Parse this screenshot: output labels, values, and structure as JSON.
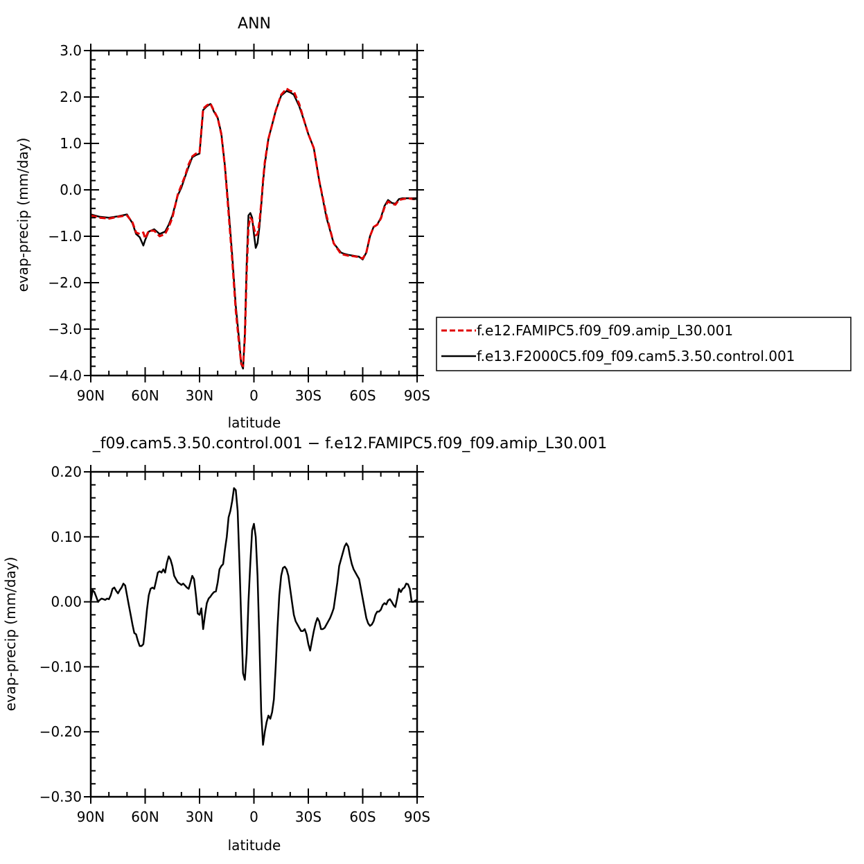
{
  "chart_data": [
    {
      "type": "line",
      "title": "ANN",
      "xlabel": "latitude",
      "ylabel": "evap-precip (mm/day)",
      "xlim": [
        90,
        -90
      ],
      "ylim": [
        -4.0,
        3.0
      ],
      "x_ticks": [
        90,
        60,
        30,
        0,
        -30,
        -60,
        -90
      ],
      "x_tick_labels": [
        "90N",
        "60N",
        "30N",
        "0",
        "30S",
        "60S",
        "90S"
      ],
      "y_ticks": [
        3.0,
        2.0,
        1.0,
        0.0,
        -1.0,
        -2.0,
        -3.0,
        -4.0
      ],
      "y_tick_labels": [
        "3.0",
        "2.0",
        "1.0",
        "0.0",
        "−1.0",
        "−2.0",
        "−3.0",
        "−4.0"
      ],
      "legend_position": "right",
      "series": [
        {
          "name": "f.e12.FAMIPC5.f09_f09.amip_L30.001",
          "color": "#e00000",
          "style": "dashed",
          "x": [
            90,
            85,
            80,
            75,
            70,
            67,
            65,
            63,
            61,
            60,
            58,
            55,
            52,
            49,
            47,
            45,
            42,
            40,
            38,
            36,
            34,
            32,
            30,
            28,
            26,
            24,
            22,
            20,
            18,
            16,
            14,
            12,
            10,
            8,
            7,
            6,
            5,
            4,
            3,
            2,
            1,
            0,
            -1,
            -2,
            -3,
            -4,
            -5,
            -6,
            -8,
            -10,
            -12,
            -15,
            -18,
            -20,
            -22,
            -25,
            -28,
            -30,
            -33,
            -36,
            -40,
            -44,
            -48,
            -50,
            -52,
            -55,
            -58,
            -60,
            -62,
            -64,
            -66,
            -68,
            -70,
            -72,
            -74,
            -76,
            -78,
            -80,
            -82,
            -85,
            -88,
            -90
          ],
          "y": [
            -0.55,
            -0.6,
            -0.62,
            -0.58,
            -0.55,
            -0.7,
            -0.92,
            -0.95,
            -0.92,
            -1.05,
            -0.88,
            -0.88,
            -1.0,
            -0.95,
            -0.8,
            -0.6,
            -0.1,
            0.1,
            0.3,
            0.55,
            0.72,
            0.78,
            0.8,
            1.75,
            1.82,
            1.86,
            1.7,
            1.55,
            1.2,
            0.5,
            -0.5,
            -1.5,
            -2.6,
            -3.4,
            -3.75,
            -3.8,
            -3.2,
            -1.8,
            -0.8,
            -0.6,
            -0.65,
            -0.82,
            -0.98,
            -0.95,
            -0.7,
            -0.3,
            0.2,
            0.6,
            1.1,
            1.4,
            1.7,
            2.05,
            2.18,
            2.13,
            2.12,
            1.85,
            1.45,
            1.2,
            0.9,
            0.2,
            -0.55,
            -1.15,
            -1.38,
            -1.4,
            -1.42,
            -1.43,
            -1.45,
            -1.48,
            -1.35,
            -1.0,
            -0.8,
            -0.75,
            -0.62,
            -0.38,
            -0.25,
            -0.3,
            -0.32,
            -0.22,
            -0.2,
            -0.18,
            -0.2,
            -0.2
          ]
        },
        {
          "name": "f.e13.F2000C5.f09_f09.cam5.3.50.control.001",
          "color": "#000000",
          "style": "solid",
          "x": [
            90,
            85,
            80,
            75,
            70,
            67,
            65,
            63,
            61,
            60,
            58,
            55,
            52,
            49,
            47,
            45,
            42,
            40,
            38,
            36,
            34,
            32,
            30,
            28,
            26,
            24,
            22,
            20,
            18,
            16,
            14,
            12,
            10,
            8,
            7,
            6,
            5,
            4,
            3,
            2,
            1,
            0,
            -1,
            -2,
            -3,
            -4,
            -5,
            -6,
            -8,
            -10,
            -12,
            -15,
            -18,
            -20,
            -22,
            -25,
            -28,
            -30,
            -33,
            -36,
            -40,
            -44,
            -48,
            -50,
            -52,
            -55,
            -58,
            -60,
            -62,
            -64,
            -66,
            -68,
            -70,
            -72,
            -74,
            -76,
            -78,
            -80,
            -82,
            -85,
            -88,
            -90
          ],
          "y": [
            -0.53,
            -0.58,
            -0.6,
            -0.57,
            -0.53,
            -0.72,
            -0.95,
            -1.02,
            -1.2,
            -1.08,
            -0.9,
            -0.85,
            -0.95,
            -0.9,
            -0.75,
            -0.55,
            -0.12,
            0.05,
            0.28,
            0.5,
            0.7,
            0.75,
            0.78,
            1.72,
            1.8,
            1.85,
            1.68,
            1.55,
            1.22,
            0.52,
            -0.4,
            -1.4,
            -2.5,
            -3.3,
            -3.75,
            -3.85,
            -3.1,
            -1.6,
            -0.55,
            -0.5,
            -0.6,
            -0.95,
            -1.25,
            -1.15,
            -0.8,
            -0.35,
            0.15,
            0.55,
            1.1,
            1.4,
            1.7,
            2.03,
            2.13,
            2.1,
            2.05,
            1.8,
            1.45,
            1.2,
            0.9,
            0.2,
            -0.6,
            -1.15,
            -1.35,
            -1.38,
            -1.4,
            -1.42,
            -1.44,
            -1.5,
            -1.35,
            -1.0,
            -0.8,
            -0.75,
            -0.6,
            -0.35,
            -0.22,
            -0.28,
            -0.3,
            -0.2,
            -0.18,
            -0.18,
            -0.18,
            -0.18
          ]
        }
      ]
    },
    {
      "type": "line",
      "title": "_f09.cam5.3.50.control.001 − f.e12.FAMIPC5.f09_f09.amip_L30.001",
      "xlabel": "latitude",
      "ylabel": "evap-precip (mm/day)",
      "xlim": [
        90,
        -90
      ],
      "ylim": [
        -0.3,
        0.2
      ],
      "x_ticks": [
        90,
        60,
        30,
        0,
        -30,
        -60,
        -90
      ],
      "x_tick_labels": [
        "90N",
        "60N",
        "30N",
        "0",
        "30S",
        "60S",
        "90S"
      ],
      "y_ticks": [
        0.2,
        0.1,
        0.0,
        -0.1,
        -0.2,
        -0.3
      ],
      "y_tick_labels": [
        "0.20",
        "0.10",
        "0.00",
        "−0.10",
        "−0.20",
        "−0.30"
      ],
      "series": [
        {
          "color": "#000000",
          "style": "solid",
          "x": [
            90,
            89,
            88,
            87,
            86,
            85,
            84,
            83,
            82,
            81,
            80,
            79,
            78,
            77,
            76,
            75,
            74,
            73,
            72,
            71,
            70,
            69,
            68,
            67,
            66,
            65,
            64,
            63,
            62,
            61,
            60,
            59,
            58,
            57,
            56,
            55,
            54,
            53,
            52,
            51,
            50,
            49,
            48,
            47,
            46,
            45,
            44,
            43,
            42,
            41,
            40,
            39,
            38,
            37,
            36,
            35,
            34,
            33,
            32,
            31,
            30,
            29,
            28,
            27,
            26,
            25,
            24,
            23,
            22,
            21,
            20,
            19,
            18,
            17,
            16,
            15,
            14,
            13,
            12,
            11,
            10,
            9,
            8,
            7,
            6,
            5,
            4,
            3,
            2,
            1,
            0,
            -1,
            -2,
            -3,
            -4,
            -5,
            -6,
            -7,
            -8,
            -9,
            -10,
            -11,
            -12,
            -13,
            -14,
            -15,
            -16,
            -17,
            -18,
            -19,
            -20,
            -21,
            -22,
            -23,
            -24,
            -25,
            -26,
            -27,
            -28,
            -29,
            -30,
            -31,
            -32,
            -33,
            -34,
            -35,
            -36,
            -37,
            -38,
            -39,
            -40,
            -41,
            -42,
            -43,
            -44,
            -45,
            -46,
            -47,
            -48,
            -49,
            -50,
            -51,
            -52,
            -53,
            -54,
            -55,
            -56,
            -57,
            -58,
            -59,
            -60,
            -61,
            -62,
            -63,
            -64,
            -65,
            -66,
            -67,
            -68,
            -69,
            -70,
            -71,
            -72,
            -73,
            -74,
            -75,
            -76,
            -77,
            -78,
            -79,
            -80,
            -81,
            -82,
            -83,
            -84,
            -85,
            -86,
            -87,
            -88,
            -89,
            -90
          ],
          "y": [
            0.0,
            0.018,
            0.015,
            0.008,
            0.0,
            0.003,
            0.005,
            0.004,
            0.003,
            0.005,
            0.004,
            0.01,
            0.02,
            0.022,
            0.017,
            0.013,
            0.018,
            0.022,
            0.028,
            0.025,
            0.01,
            -0.005,
            -0.02,
            -0.035,
            -0.048,
            -0.05,
            -0.06,
            -0.068,
            -0.068,
            -0.065,
            -0.04,
            -0.012,
            0.01,
            0.02,
            0.022,
            0.02,
            0.032,
            0.045,
            0.047,
            0.045,
            0.05,
            0.045,
            0.06,
            0.07,
            0.065,
            0.055,
            0.04,
            0.035,
            0.03,
            0.028,
            0.026,
            0.028,
            0.025,
            0.022,
            0.02,
            0.03,
            0.04,
            0.035,
            0.01,
            -0.018,
            -0.02,
            -0.01,
            -0.042,
            -0.02,
            -0.002,
            0.005,
            0.008,
            0.012,
            0.015,
            0.016,
            0.03,
            0.05,
            0.055,
            0.058,
            0.08,
            0.1,
            0.13,
            0.14,
            0.155,
            0.175,
            0.172,
            0.14,
            0.06,
            -0.03,
            -0.11,
            -0.12,
            -0.08,
            0.0,
            0.06,
            0.11,
            0.12,
            0.1,
            0.04,
            -0.06,
            -0.17,
            -0.22,
            -0.2,
            -0.185,
            -0.175,
            -0.18,
            -0.17,
            -0.15,
            -0.1,
            -0.04,
            0.01,
            0.04,
            0.052,
            0.054,
            0.05,
            0.04,
            0.02,
            0.0,
            -0.02,
            -0.03,
            -0.035,
            -0.04,
            -0.045,
            -0.045,
            -0.042,
            -0.05,
            -0.065,
            -0.075,
            -0.06,
            -0.045,
            -0.033,
            -0.025,
            -0.03,
            -0.042,
            -0.042,
            -0.04,
            -0.035,
            -0.03,
            -0.025,
            -0.018,
            -0.01,
            0.01,
            0.03,
            0.055,
            0.065,
            0.075,
            0.085,
            0.09,
            0.085,
            0.07,
            0.058,
            0.05,
            0.045,
            0.04,
            0.035,
            0.02,
            0.005,
            -0.01,
            -0.025,
            -0.033,
            -0.037,
            -0.035,
            -0.03,
            -0.02,
            -0.015,
            -0.015,
            -0.012,
            -0.005,
            -0.002,
            -0.004,
            0.002,
            0.004,
            0.0,
            -0.005,
            -0.008,
            0.005,
            0.02,
            0.015,
            0.02,
            0.022,
            0.028,
            0.027,
            0.02,
            0.0,
            0.0,
            0.002,
            0.003
          ]
        }
      ]
    }
  ]
}
